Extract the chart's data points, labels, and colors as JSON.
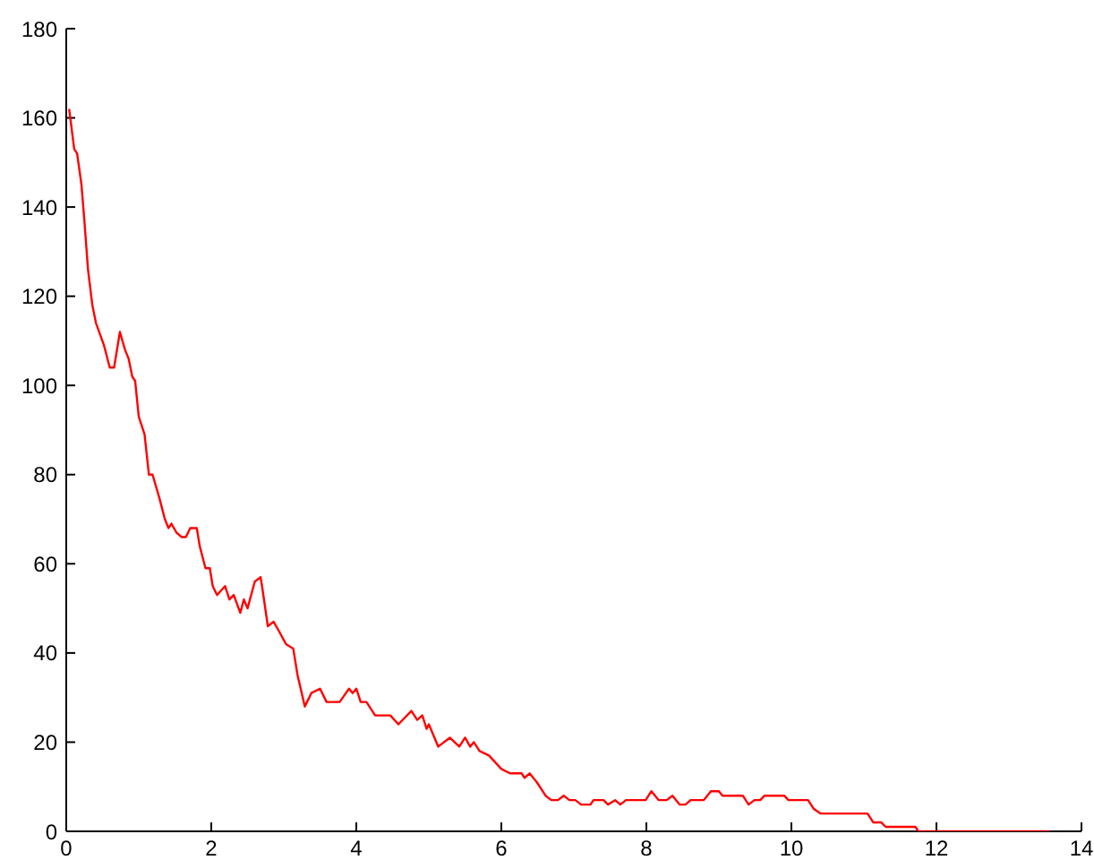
{
  "chart_data": {
    "type": "line",
    "color": "#ff0000",
    "marker": "none",
    "x": [
      0.04,
      0.11,
      0.15,
      0.21,
      0.25,
      0.3,
      0.36,
      0.41,
      0.52,
      0.6,
      0.66,
      0.74,
      0.81,
      0.86,
      0.91,
      0.95,
      1.0,
      1.08,
      1.14,
      1.19,
      1.28,
      1.36,
      1.41,
      1.45,
      1.52,
      1.59,
      1.65,
      1.71,
      1.8,
      1.84,
      1.92,
      1.98,
      2.02,
      2.08,
      2.19,
      2.25,
      2.31,
      2.4,
      2.45,
      2.5,
      2.6,
      2.68,
      2.7,
      2.78,
      2.86,
      2.93,
      3.03,
      3.13,
      3.19,
      3.29,
      3.38,
      3.5,
      3.59,
      3.77,
      3.9,
      3.95,
      4.0,
      4.06,
      4.14,
      4.26,
      4.39,
      4.47,
      4.58,
      4.76,
      4.84,
      4.91,
      4.97,
      5.0,
      5.13,
      5.29,
      5.42,
      5.5,
      5.57,
      5.62,
      5.7,
      5.83,
      6.0,
      6.12,
      6.28,
      6.32,
      6.39,
      6.49,
      6.61,
      6.69,
      6.78,
      6.86,
      6.94,
      7.02,
      7.1,
      7.23,
      7.27,
      7.41,
      7.47,
      7.57,
      7.64,
      7.72,
      7.99,
      8.07,
      8.17,
      8.28,
      8.36,
      8.46,
      8.54,
      8.61,
      8.79,
      8.89,
      9.0,
      9.05,
      9.33,
      9.41,
      9.49,
      9.57,
      9.63,
      9.9,
      9.96,
      10.23,
      10.31,
      10.4,
      11.05,
      11.13,
      11.24,
      11.3,
      11.71,
      11.75,
      13.56
    ],
    "values": [
      162,
      153,
      152,
      145,
      137,
      126,
      118,
      114,
      109,
      104,
      104,
      112,
      108,
      106,
      102,
      101,
      93,
      89,
      80,
      80,
      75,
      70,
      68,
      69,
      67,
      66,
      66,
      68,
      68,
      64,
      59,
      59,
      55,
      53,
      55,
      52,
      53,
      49,
      52,
      50,
      56,
      57,
      55,
      46,
      47,
      45,
      42,
      41,
      35,
      28,
      31,
      32,
      29,
      29,
      32,
      31,
      32,
      29,
      29,
      26,
      26,
      26,
      24,
      27,
      25,
      26,
      23,
      24,
      19,
      21,
      19,
      21,
      19,
      20,
      18,
      17,
      14,
      13,
      13,
      12,
      13,
      11,
      8,
      7,
      7,
      8,
      7,
      7,
      6,
      6,
      7,
      7,
      6,
      7,
      6,
      7,
      7,
      9,
      7,
      7,
      8,
      6,
      6,
      7,
      7,
      9,
      9,
      8,
      8,
      6,
      7,
      7,
      8,
      8,
      7,
      7,
      5,
      4,
      4,
      2,
      2,
      1,
      1,
      0,
      0
    ],
    "xlim": [
      0,
      14
    ],
    "xticks": [
      0,
      2,
      4,
      6,
      8,
      10,
      12,
      14
    ],
    "ylim": [
      0,
      180
    ],
    "yticks": [
      0,
      20,
      40,
      60,
      80,
      100,
      120,
      140,
      160,
      180
    ]
  }
}
